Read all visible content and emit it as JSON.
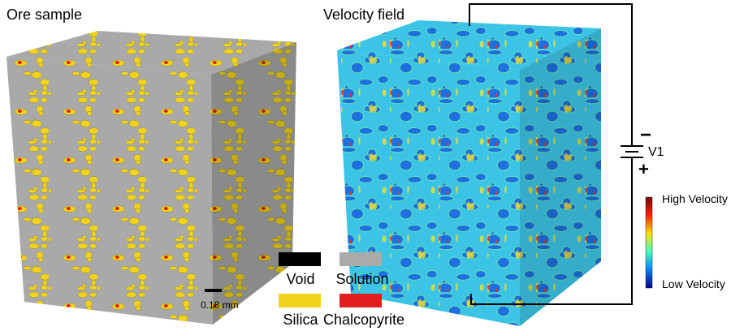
{
  "titles": {
    "left": "Ore sample",
    "right": "Velocity field"
  },
  "legend": [
    {
      "label": "Void",
      "color": "#000000"
    },
    {
      "label": "Solution",
      "color": "#aaaaaa"
    },
    {
      "label": "Silica",
      "color": "#f2d21a"
    },
    {
      "label": "Chalcopyrite",
      "color": "#e01e1e"
    }
  ],
  "scale_bar": "0.18 mm",
  "circuit": {
    "label": "V1",
    "minus": "−",
    "plus": "+"
  },
  "colorbar": {
    "high": "High Velocity",
    "low": "Low Velocity"
  }
}
